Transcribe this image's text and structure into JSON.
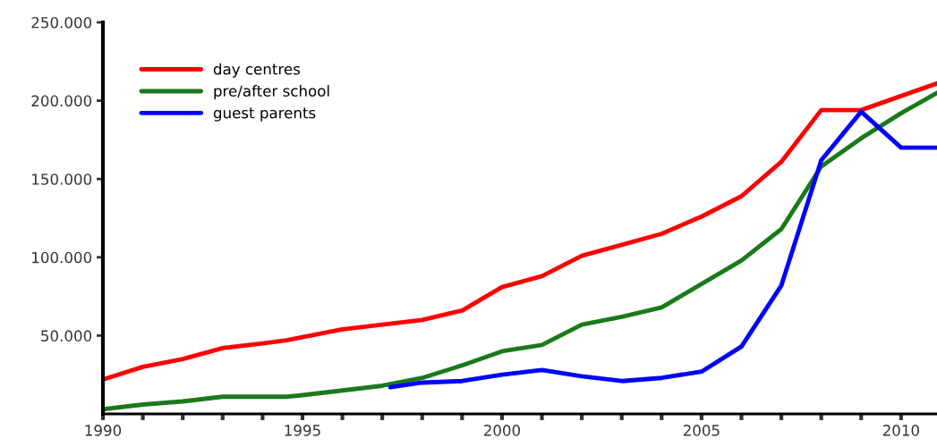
{
  "chart_data": {
    "type": "line",
    "xlim": [
      1990,
      2010.9
    ],
    "ylim": [
      0,
      250000
    ],
    "xticks": [
      {
        "value": 1990,
        "label": "1990"
      },
      {
        "value": 1991,
        "label": null
      },
      {
        "value": 1992,
        "label": null
      },
      {
        "value": 1993,
        "label": null
      },
      {
        "value": 1994,
        "label": null
      },
      {
        "value": 1995,
        "label": "1995"
      },
      {
        "value": 1996,
        "label": null
      },
      {
        "value": 1997,
        "label": null
      },
      {
        "value": 1998,
        "label": null
      },
      {
        "value": 1999,
        "label": null
      },
      {
        "value": 2000,
        "label": "2000"
      },
      {
        "value": 2001,
        "label": null
      },
      {
        "value": 2002,
        "label": null
      },
      {
        "value": 2003,
        "label": null
      },
      {
        "value": 2004,
        "label": null
      },
      {
        "value": 2005,
        "label": "2005"
      },
      {
        "value": 2006,
        "label": null
      },
      {
        "value": 2007,
        "label": null
      },
      {
        "value": 2008,
        "label": null
      },
      {
        "value": 2009,
        "label": null
      },
      {
        "value": 2010,
        "label": "2010"
      }
    ],
    "yticks": [
      {
        "value": 50000,
        "label": "50.000"
      },
      {
        "value": 100000,
        "label": "100.000"
      },
      {
        "value": 150000,
        "label": "150.000"
      },
      {
        "value": 200000,
        "label": "200.000"
      },
      {
        "value": 250000,
        "label": "250.000"
      }
    ],
    "grid": false,
    "legend": "top left",
    "marker": "none",
    "line_style": "solid",
    "series": [
      {
        "name": "day centres",
        "color": "#ff0000",
        "x": [
          1990,
          1991,
          1992,
          1993,
          1994,
          1994.6,
          1995,
          1996,
          1997,
          1998,
          1999,
          2000,
          2001,
          2002,
          2003,
          2004,
          2005,
          2006,
          2007,
          2008,
          2009,
          2010,
          2010.9
        ],
        "values": [
          22000,
          30000,
          35000,
          42000,
          45000,
          47000,
          49000,
          54000,
          57000,
          60000,
          66000,
          81000,
          88000,
          101000,
          108000,
          115000,
          126000,
          139000,
          161000,
          194000,
          194000,
          203000,
          211000
        ]
      },
      {
        "name": "pre/after school",
        "color": "#1a7a1a",
        "x": [
          1990,
          1991,
          1992,
          1993,
          1994,
          1994.6,
          1995,
          1996,
          1997,
          1998,
          1999,
          2000,
          2001,
          2002,
          2003,
          2004,
          2005,
          2006,
          2007,
          2008,
          2009,
          2010,
          2010.9
        ],
        "values": [
          3000,
          6000,
          8000,
          11000,
          11000,
          11000,
          12000,
          15000,
          18000,
          23000,
          31000,
          40000,
          44000,
          57000,
          62000,
          68000,
          83000,
          98000,
          118000,
          158000,
          176000,
          192000,
          205000
        ]
      },
      {
        "name": "guest parents",
        "color": "#0000ff",
        "x": [
          1997.2,
          1998,
          1999,
          2000,
          2001,
          2002,
          2003,
          2004,
          2005,
          2006,
          2007,
          2008,
          2009,
          2010,
          2010.9
        ],
        "values": [
          17000,
          20000,
          21000,
          25000,
          28000,
          24000,
          21000,
          23000,
          27000,
          43000,
          82000,
          162000,
          193000,
          170000,
          170000
        ]
      }
    ]
  }
}
